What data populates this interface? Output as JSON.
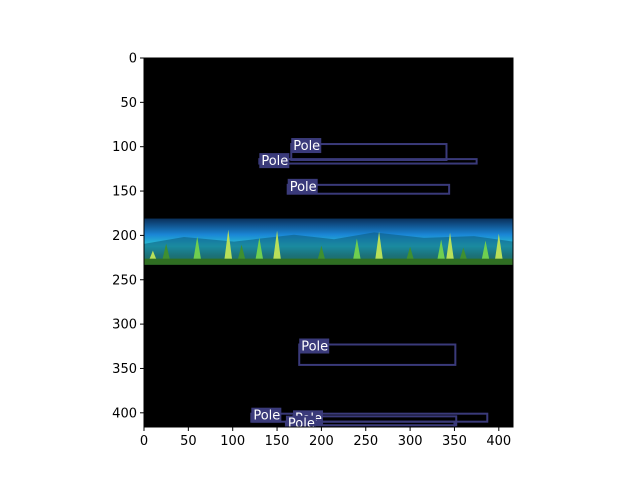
{
  "figure": {
    "x_axis": {
      "ticks": [
        0,
        50,
        100,
        150,
        200,
        250,
        300,
        350,
        400
      ],
      "range": [
        0,
        416
      ]
    },
    "y_axis": {
      "ticks": [
        0,
        50,
        100,
        150,
        200,
        250,
        300,
        350,
        400
      ],
      "range": [
        0,
        416
      ],
      "inverted": true
    },
    "image_content": {
      "background": "#000000",
      "panorama_band": {
        "y0": 181,
        "y1": 233,
        "x0": 0,
        "x1": 416,
        "description_colors": [
          "#0a3a6a",
          "#1f8fe0",
          "#2bd4d4",
          "#a8e060",
          "#3a7a28"
        ]
      }
    },
    "box_color": "#3a3a7a",
    "box_label_bg": "#3a3a7a",
    "boxes": [
      {
        "label": "Pole",
        "x0": 166,
        "y0": 97,
        "x1": 341,
        "y1": 115
      },
      {
        "label": "Pole",
        "x0": 130,
        "y0": 114,
        "x1": 375,
        "y1": 119
      },
      {
        "label": "Pole",
        "x0": 162,
        "y0": 143,
        "x1": 344,
        "y1": 153
      },
      {
        "label": "Pole",
        "x0": 175,
        "y0": 323,
        "x1": 351,
        "y1": 346
      },
      {
        "label": "Pole",
        "x0": 121,
        "y0": 401,
        "x1": 387,
        "y1": 410
      },
      {
        "label": "Pole",
        "x0": 168,
        "y0": 404,
        "x1": 352,
        "y1": 414
      },
      {
        "label": "Pole",
        "x0": 160,
        "y0": 410,
        "x1": 350,
        "y1": 418
      }
    ]
  }
}
